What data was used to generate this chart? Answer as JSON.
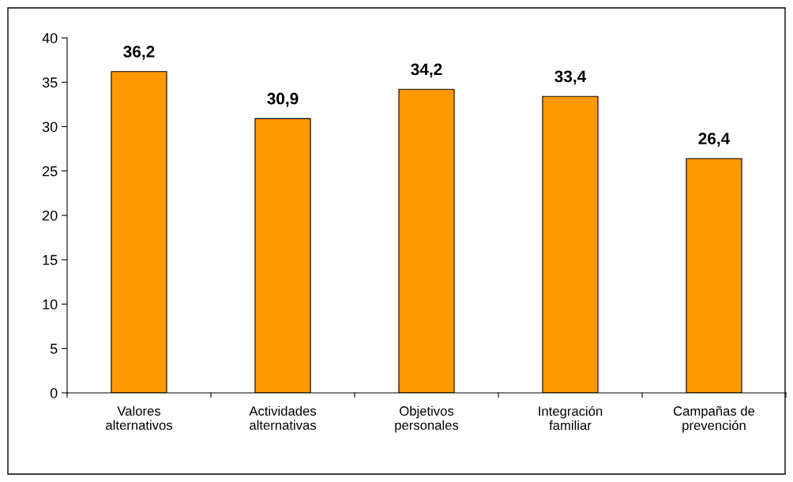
{
  "chart_data": {
    "type": "bar",
    "categories": [
      "Valores\nalternativos",
      "Actividades\nalternativas",
      "Objetivos\npersonales",
      "Integración\nfamiliar",
      "Campañas de\nprevención"
    ],
    "values": [
      36.2,
      30.9,
      34.2,
      33.4,
      26.4
    ],
    "value_labels": [
      "36,2",
      "30,9",
      "34,2",
      "33,4",
      "26,4"
    ],
    "color": "#ff9900",
    "ylim": [
      0,
      40
    ],
    "yticks": [
      0,
      5,
      10,
      15,
      20,
      25,
      30,
      35,
      40
    ],
    "grid": false,
    "legend": false
  }
}
